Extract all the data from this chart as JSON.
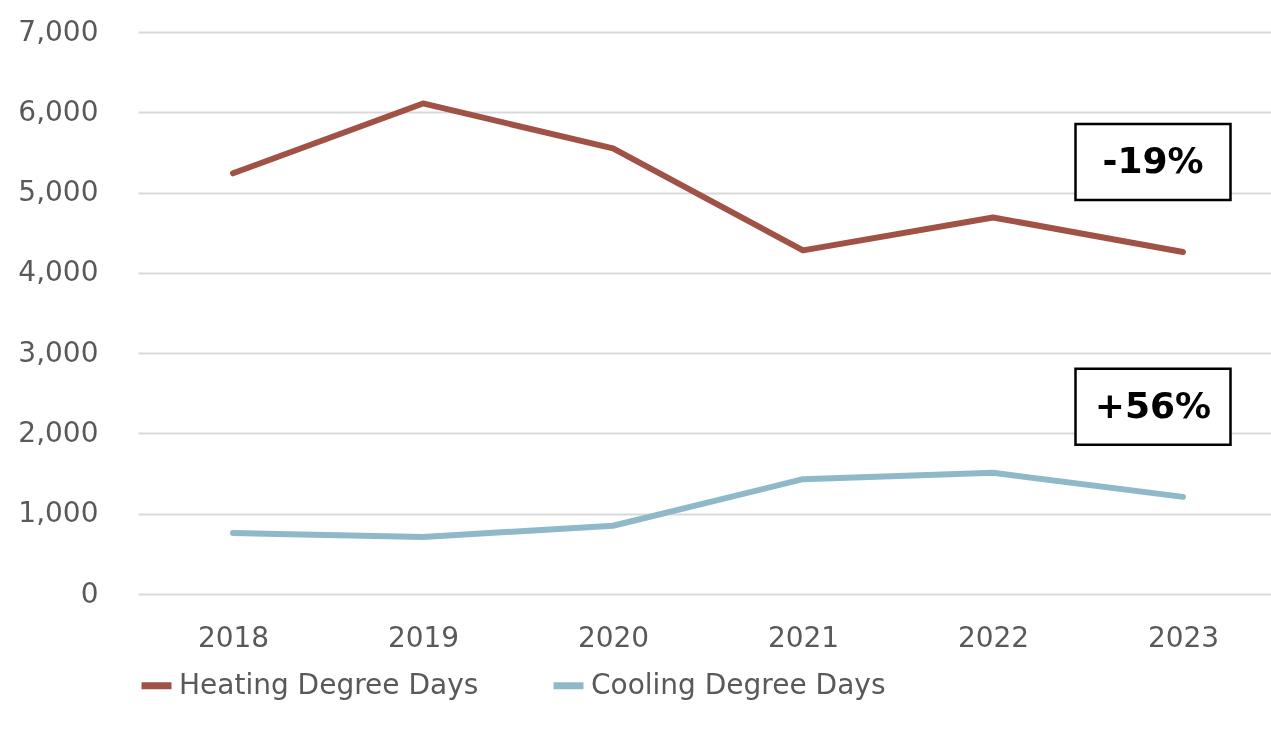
{
  "chart_data": {
    "type": "line",
    "categories": [
      "2018",
      "2019",
      "2020",
      "2021",
      "2022",
      "2023"
    ],
    "series": [
      {
        "name": "Heating Degree Days",
        "color": "#a05246",
        "values": [
          5240,
          6110,
          5550,
          4280,
          4690,
          4260
        ]
      },
      {
        "name": "Cooling Degree Days",
        "color": "#8fb8c9",
        "values": [
          760,
          710,
          850,
          1430,
          1510,
          1210
        ]
      }
    ],
    "ylim": [
      0,
      7000
    ],
    "yticks": [
      0,
      {
        "value": 1000,
        "label": "1,000"
      },
      {
        "value": 2000,
        "label": "2,000"
      },
      {
        "value": 3000,
        "label": "3,000"
      },
      {
        "value": 4000,
        "label": "4,000"
      },
      {
        "value": 5000,
        "label": "5,000"
      },
      {
        "value": 6000,
        "label": "6,000"
      },
      {
        "value": 7000,
        "label": "7,000"
      }
    ],
    "grid": "y",
    "legend": "bottom",
    "marker": "none",
    "line_style": "solid",
    "annotations": [
      "-19%",
      "+56%"
    ]
  }
}
